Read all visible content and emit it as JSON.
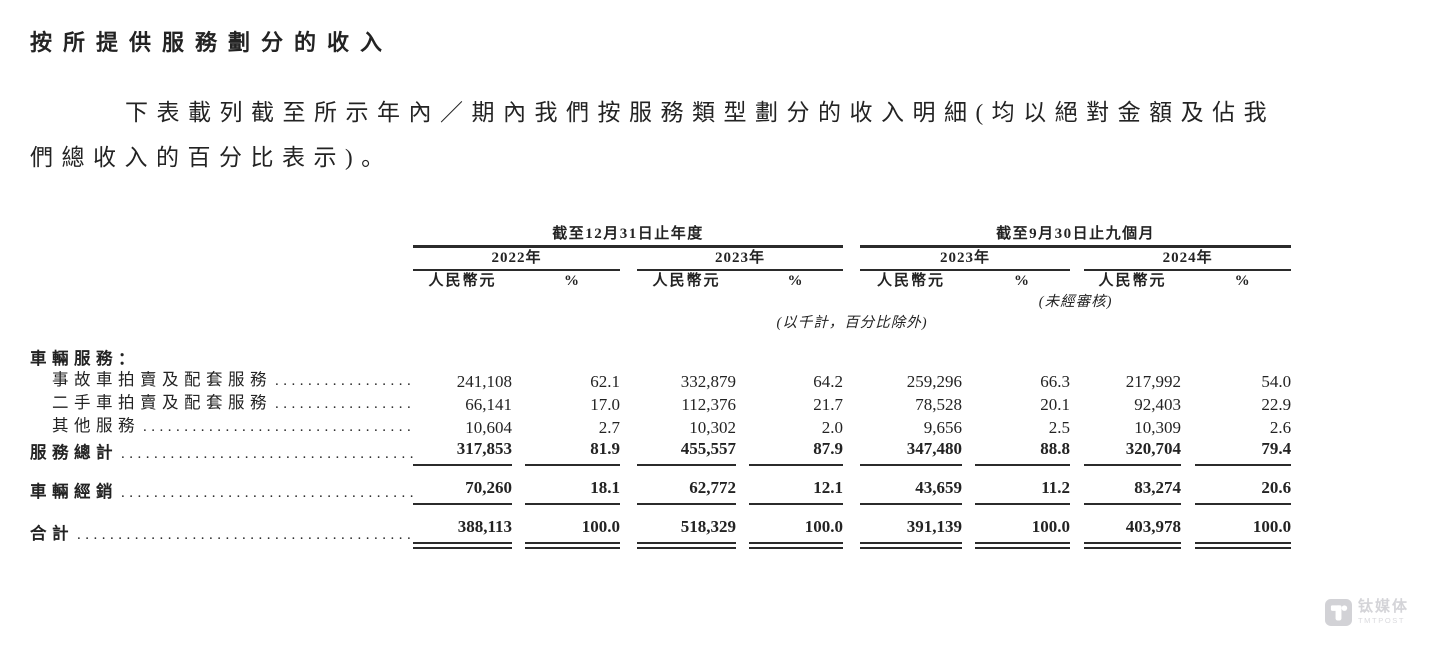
{
  "title": "按所提供服務劃分的收入",
  "paragraph": {
    "line1": "下表載列截至所示年內／期內我們按服務類型劃分的收入明細(均以絕對金額及佔我",
    "line2": "們總收入的百分比表示)。"
  },
  "table": {
    "period_headers": [
      "截至12月31日止年度",
      "截至9月30日止九個月"
    ],
    "years": [
      "2022年",
      "2023年",
      "2023年",
      "2024年"
    ],
    "currency_header": "人民幣元",
    "percent_header": "%",
    "unaudited_note": "(未經審核)",
    "units_note": "(以千計，百分比除外)",
    "dot_leader": "................................................................................",
    "rows": [
      {
        "label": "車輛服務：",
        "section": true,
        "bold": true,
        "indent": false,
        "dots": false,
        "values": []
      },
      {
        "label": "事故車拍賣及配套服務",
        "section": false,
        "bold": false,
        "indent": true,
        "dots": true,
        "values": [
          "241,108",
          "62.1",
          "332,879",
          "64.2",
          "259,296",
          "66.3",
          "217,992",
          "54.0"
        ]
      },
      {
        "label": "二手車拍賣及配套服務",
        "section": false,
        "bold": false,
        "indent": true,
        "dots": true,
        "values": [
          "66,141",
          "17.0",
          "112,376",
          "21.7",
          "78,528",
          "20.1",
          "92,403",
          "22.9"
        ]
      },
      {
        "label": "其他服務",
        "section": false,
        "bold": false,
        "indent": true,
        "dots": true,
        "values": [
          "10,604",
          "2.7",
          "10,302",
          "2.0",
          "9,656",
          "2.5",
          "10,309",
          "2.6"
        ]
      },
      {
        "label": "服務總計",
        "section": false,
        "bold": true,
        "indent": false,
        "dots": true,
        "rule": "single",
        "values": [
          "317,853",
          "81.9",
          "455,557",
          "87.9",
          "347,480",
          "88.8",
          "320,704",
          "79.4"
        ]
      },
      {
        "label": "車輛經銷",
        "section": false,
        "bold": true,
        "indent": false,
        "dots": true,
        "rule": "single",
        "gap_above": true,
        "values": [
          "70,260",
          "18.1",
          "62,772",
          "12.1",
          "43,659",
          "11.2",
          "83,274",
          "20.6"
        ]
      },
      {
        "label": "合計",
        "section": false,
        "bold": true,
        "indent": false,
        "dots": true,
        "rule": "double",
        "gap_above": true,
        "values": [
          "388,113",
          "100.0",
          "518,329",
          "100.0",
          "391,139",
          "100.0",
          "403,978",
          "100.0"
        ]
      }
    ]
  },
  "watermark": {
    "logo_letter": "T",
    "name_cn": "钛媒体",
    "name_en": "TMTPOST"
  },
  "colors": {
    "text": "#232323",
    "rule": "#2b2b2b",
    "watermark": "#d2d2d6"
  }
}
